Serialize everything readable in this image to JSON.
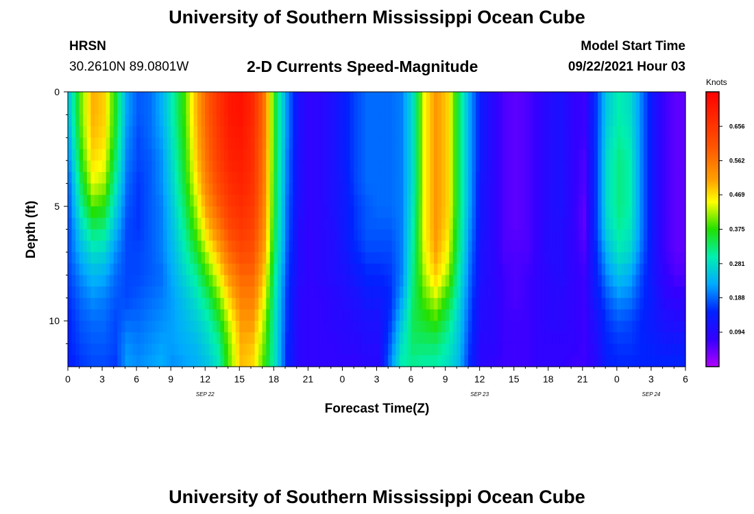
{
  "header": {
    "top_title": "University of Southern Mississippi Ocean Cube",
    "station": "HRSN",
    "coords": "30.2610N  89.0801W",
    "subtitle": "2-D Currents Speed-Magnitude",
    "model_start_label": "Model Start Time",
    "model_start_value": "09/22/2021 Hour 03",
    "bottom_title": "University of Southern Mississippi Ocean Cube"
  },
  "chart_data": {
    "type": "heatmap",
    "title": "2-D Currents Speed-Magnitude",
    "xlabel": "Forecast Time(Z)",
    "ylabel": "Depth (ft)",
    "units": "Knots",
    "x_range_hours": [
      0,
      54
    ],
    "x_tick_labels": [
      "0",
      "3",
      "6",
      "9",
      "12",
      "15",
      "18",
      "21",
      "0",
      "3",
      "6",
      "9",
      "12",
      "15",
      "18",
      "21",
      "0",
      "3",
      "6"
    ],
    "date_labels": [
      {
        "label": "SEP 22",
        "hour": 12
      },
      {
        "label": "SEP 23",
        "hour": 36
      },
      {
        "label": "SEP 24",
        "hour": 51
      }
    ],
    "y_range_ft": [
      0,
      12
    ],
    "y_tick_labels": [
      "0",
      "5",
      "10"
    ],
    "y_tick_values": [
      0,
      5,
      10
    ],
    "colorbar": {
      "min": 0.0,
      "max": 0.75,
      "tick_labels": [
        "0.656",
        "0.562",
        "0.469",
        "0.375",
        "0.281",
        "0.188",
        "0.094"
      ],
      "tick_values": [
        0.656,
        0.562,
        0.469,
        0.375,
        0.281,
        0.188,
        0.094
      ]
    },
    "depth_levels_ft": [
      0,
      1,
      2,
      3,
      4,
      5,
      6,
      7,
      8,
      9,
      10,
      11,
      12
    ],
    "profile_columns": [
      {
        "hour": 0,
        "speed_knots": [
          0.26,
          0.26,
          0.24,
          0.22,
          0.2,
          0.19,
          0.18,
          0.18,
          0.17,
          0.16,
          0.15,
          0.15,
          0.14
        ]
      },
      {
        "hour": 1,
        "speed_knots": [
          0.4,
          0.4,
          0.39,
          0.37,
          0.34,
          0.31,
          0.27,
          0.24,
          0.21,
          0.19,
          0.18,
          0.17,
          0.16
        ]
      },
      {
        "hour": 2,
        "speed_knots": [
          0.5,
          0.5,
          0.49,
          0.47,
          0.44,
          0.39,
          0.33,
          0.28,
          0.24,
          0.21,
          0.19,
          0.18,
          0.17
        ]
      },
      {
        "hour": 3,
        "speed_knots": [
          0.48,
          0.48,
          0.47,
          0.45,
          0.42,
          0.37,
          0.32,
          0.27,
          0.23,
          0.2,
          0.19,
          0.18,
          0.17
        ]
      },
      {
        "hour": 4,
        "speed_knots": [
          0.36,
          0.36,
          0.35,
          0.33,
          0.3,
          0.27,
          0.24,
          0.21,
          0.19,
          0.18,
          0.17,
          0.17,
          0.16
        ]
      },
      {
        "hour": 5,
        "speed_knots": [
          0.22,
          0.22,
          0.21,
          0.2,
          0.19,
          0.18,
          0.17,
          0.17,
          0.17,
          0.17,
          0.19,
          0.21,
          0.22
        ]
      },
      {
        "hour": 6,
        "speed_knots": [
          0.18,
          0.18,
          0.17,
          0.17,
          0.16,
          0.16,
          0.16,
          0.17,
          0.17,
          0.18,
          0.19,
          0.2,
          0.21
        ]
      },
      {
        "hour": 7,
        "speed_knots": [
          0.19,
          0.19,
          0.19,
          0.18,
          0.18,
          0.18,
          0.18,
          0.18,
          0.18,
          0.19,
          0.2,
          0.21,
          0.22
        ]
      },
      {
        "hour": 8,
        "speed_knots": [
          0.23,
          0.23,
          0.22,
          0.21,
          0.21,
          0.2,
          0.2,
          0.2,
          0.19,
          0.2,
          0.21,
          0.22,
          0.23
        ]
      },
      {
        "hour": 9,
        "speed_knots": [
          0.3,
          0.3,
          0.29,
          0.28,
          0.27,
          0.26,
          0.25,
          0.24,
          0.23,
          0.22,
          0.22,
          0.22,
          0.21
        ]
      },
      {
        "hour": 10,
        "speed_knots": [
          0.38,
          0.38,
          0.37,
          0.36,
          0.35,
          0.33,
          0.31,
          0.29,
          0.27,
          0.25,
          0.24,
          0.23,
          0.22
        ]
      },
      {
        "hour": 11,
        "speed_knots": [
          0.49,
          0.49,
          0.48,
          0.47,
          0.45,
          0.42,
          0.39,
          0.35,
          0.31,
          0.28,
          0.26,
          0.24,
          0.23
        ]
      },
      {
        "hour": 12,
        "speed_knots": [
          0.59,
          0.59,
          0.58,
          0.57,
          0.55,
          0.52,
          0.48,
          0.43,
          0.38,
          0.33,
          0.29,
          0.27,
          0.25
        ]
      },
      {
        "hour": 13,
        "speed_knots": [
          0.66,
          0.66,
          0.65,
          0.64,
          0.62,
          0.59,
          0.55,
          0.5,
          0.45,
          0.4,
          0.35,
          0.31,
          0.29
        ]
      },
      {
        "hour": 14,
        "speed_knots": [
          0.71,
          0.71,
          0.7,
          0.69,
          0.67,
          0.65,
          0.62,
          0.58,
          0.53,
          0.48,
          0.44,
          0.41,
          0.4
        ]
      },
      {
        "hour": 15,
        "speed_knots": [
          0.72,
          0.72,
          0.71,
          0.7,
          0.69,
          0.67,
          0.65,
          0.62,
          0.58,
          0.55,
          0.52,
          0.5,
          0.49
        ]
      },
      {
        "hour": 16,
        "speed_knots": [
          0.68,
          0.68,
          0.67,
          0.67,
          0.66,
          0.65,
          0.63,
          0.61,
          0.58,
          0.55,
          0.52,
          0.49,
          0.47
        ]
      },
      {
        "hour": 17,
        "speed_knots": [
          0.56,
          0.56,
          0.56,
          0.55,
          0.55,
          0.54,
          0.53,
          0.51,
          0.48,
          0.45,
          0.42,
          0.4,
          0.38
        ]
      },
      {
        "hour": 18,
        "speed_knots": [
          0.35,
          0.35,
          0.35,
          0.35,
          0.34,
          0.34,
          0.33,
          0.32,
          0.3,
          0.29,
          0.28,
          0.28,
          0.28
        ]
      },
      {
        "hour": 19,
        "speed_knots": [
          0.21,
          0.21,
          0.21,
          0.2,
          0.2,
          0.19,
          0.19,
          0.18,
          0.17,
          0.16,
          0.16,
          0.15,
          0.15
        ]
      },
      {
        "hour": 20,
        "speed_knots": [
          0.11,
          0.11,
          0.11,
          0.11,
          0.11,
          0.11,
          0.1,
          0.1,
          0.1,
          0.09,
          0.09,
          0.09,
          0.09
        ]
      },
      {
        "hour": 21,
        "speed_knots": [
          0.08,
          0.08,
          0.08,
          0.08,
          0.08,
          0.08,
          0.08,
          0.08,
          0.08,
          0.08,
          0.08,
          0.08,
          0.08
        ]
      },
      {
        "hour": 22,
        "speed_knots": [
          0.09,
          0.09,
          0.09,
          0.09,
          0.09,
          0.09,
          0.09,
          0.09,
          0.09,
          0.08,
          0.08,
          0.08,
          0.08
        ]
      },
      {
        "hour": 23,
        "speed_knots": [
          0.11,
          0.11,
          0.11,
          0.11,
          0.11,
          0.11,
          0.1,
          0.1,
          0.1,
          0.09,
          0.09,
          0.08,
          0.08
        ]
      },
      {
        "hour": 24,
        "speed_knots": [
          0.14,
          0.14,
          0.14,
          0.14,
          0.13,
          0.13,
          0.13,
          0.12,
          0.11,
          0.1,
          0.09,
          0.09,
          0.08
        ]
      },
      {
        "hour": 25,
        "speed_knots": [
          0.17,
          0.17,
          0.17,
          0.17,
          0.17,
          0.16,
          0.16,
          0.15,
          0.13,
          0.11,
          0.1,
          0.09,
          0.08
        ]
      },
      {
        "hour": 26,
        "speed_knots": [
          0.19,
          0.19,
          0.19,
          0.19,
          0.19,
          0.18,
          0.18,
          0.17,
          0.15,
          0.13,
          0.11,
          0.1,
          0.09
        ]
      },
      {
        "hour": 27,
        "speed_knots": [
          0.19,
          0.19,
          0.19,
          0.19,
          0.19,
          0.19,
          0.18,
          0.17,
          0.15,
          0.13,
          0.11,
          0.1,
          0.09
        ]
      },
      {
        "hour": 28,
        "speed_knots": [
          0.19,
          0.19,
          0.19,
          0.19,
          0.19,
          0.19,
          0.18,
          0.17,
          0.16,
          0.15,
          0.16,
          0.18,
          0.2
        ]
      },
      {
        "hour": 29,
        "speed_knots": [
          0.2,
          0.2,
          0.2,
          0.2,
          0.2,
          0.2,
          0.2,
          0.2,
          0.2,
          0.22,
          0.25,
          0.28,
          0.3
        ]
      },
      {
        "hour": 30,
        "speed_knots": [
          0.28,
          0.28,
          0.28,
          0.28,
          0.28,
          0.29,
          0.3,
          0.31,
          0.32,
          0.33,
          0.34,
          0.33,
          0.31
        ]
      },
      {
        "hour": 31,
        "speed_knots": [
          0.45,
          0.45,
          0.45,
          0.45,
          0.45,
          0.45,
          0.45,
          0.44,
          0.42,
          0.39,
          0.36,
          0.33,
          0.3
        ]
      },
      {
        "hour": 32,
        "speed_knots": [
          0.52,
          0.52,
          0.52,
          0.52,
          0.52,
          0.52,
          0.52,
          0.51,
          0.48,
          0.43,
          0.38,
          0.33,
          0.3
        ]
      },
      {
        "hour": 33,
        "speed_knots": [
          0.48,
          0.48,
          0.48,
          0.48,
          0.48,
          0.48,
          0.47,
          0.45,
          0.42,
          0.37,
          0.33,
          0.3,
          0.28
        ]
      },
      {
        "hour": 34,
        "speed_knots": [
          0.34,
          0.34,
          0.34,
          0.34,
          0.34,
          0.34,
          0.33,
          0.32,
          0.3,
          0.28,
          0.26,
          0.25,
          0.24
        ]
      },
      {
        "hour": 35,
        "speed_knots": [
          0.22,
          0.22,
          0.22,
          0.22,
          0.22,
          0.22,
          0.21,
          0.2,
          0.19,
          0.18,
          0.17,
          0.16,
          0.15
        ]
      },
      {
        "hour": 36,
        "speed_knots": [
          0.13,
          0.13,
          0.13,
          0.13,
          0.12,
          0.12,
          0.12,
          0.11,
          0.11,
          0.1,
          0.1,
          0.09,
          0.09
        ]
      },
      {
        "hour": 37,
        "speed_knots": [
          0.09,
          0.09,
          0.09,
          0.09,
          0.09,
          0.09,
          0.09,
          0.09,
          0.09,
          0.09,
          0.09,
          0.09,
          0.08
        ]
      },
      {
        "hour": 38,
        "speed_knots": [
          0.06,
          0.06,
          0.06,
          0.06,
          0.06,
          0.06,
          0.06,
          0.06,
          0.07,
          0.07,
          0.07,
          0.07,
          0.07
        ]
      },
      {
        "hour": 39,
        "speed_knots": [
          0.05,
          0.05,
          0.05,
          0.05,
          0.05,
          0.05,
          0.05,
          0.06,
          0.06,
          0.06,
          0.07,
          0.07,
          0.07
        ]
      },
      {
        "hour": 40,
        "speed_knots": [
          0.06,
          0.06,
          0.06,
          0.06,
          0.06,
          0.06,
          0.06,
          0.06,
          0.07,
          0.07,
          0.07,
          0.07,
          0.07
        ]
      },
      {
        "hour": 41,
        "speed_knots": [
          0.08,
          0.08,
          0.08,
          0.08,
          0.08,
          0.08,
          0.08,
          0.08,
          0.08,
          0.08,
          0.08,
          0.08,
          0.08
        ]
      },
      {
        "hour": 42,
        "speed_knots": [
          0.1,
          0.1,
          0.1,
          0.1,
          0.1,
          0.1,
          0.1,
          0.1,
          0.09,
          0.09,
          0.09,
          0.08,
          0.08
        ]
      },
      {
        "hour": 43,
        "speed_knots": [
          0.11,
          0.11,
          0.11,
          0.11,
          0.11,
          0.11,
          0.1,
          0.1,
          0.1,
          0.09,
          0.09,
          0.08,
          0.08
        ]
      },
      {
        "hour": 44,
        "speed_knots": [
          0.08,
          0.08,
          0.08,
          0.08,
          0.08,
          0.08,
          0.08,
          0.08,
          0.08,
          0.08,
          0.08,
          0.08,
          0.07
        ]
      },
      {
        "hour": 45,
        "speed_knots": [
          0.07,
          0.07,
          0.07,
          0.06,
          0.06,
          0.05,
          0.05,
          0.06,
          0.07,
          0.07,
          0.07,
          0.07,
          0.07
        ]
      },
      {
        "hour": 46,
        "speed_knots": [
          0.16,
          0.16,
          0.16,
          0.16,
          0.16,
          0.16,
          0.16,
          0.15,
          0.14,
          0.13,
          0.11,
          0.1,
          0.09
        ]
      },
      {
        "hour": 47,
        "speed_knots": [
          0.26,
          0.26,
          0.27,
          0.28,
          0.28,
          0.28,
          0.27,
          0.24,
          0.21,
          0.18,
          0.16,
          0.15,
          0.14
        ]
      },
      {
        "hour": 48,
        "speed_knots": [
          0.3,
          0.3,
          0.31,
          0.32,
          0.32,
          0.32,
          0.31,
          0.29,
          0.25,
          0.21,
          0.18,
          0.16,
          0.15
        ]
      },
      {
        "hour": 49,
        "speed_knots": [
          0.28,
          0.28,
          0.29,
          0.3,
          0.3,
          0.3,
          0.29,
          0.27,
          0.23,
          0.2,
          0.17,
          0.16,
          0.15
        ]
      },
      {
        "hour": 50,
        "speed_knots": [
          0.2,
          0.2,
          0.2,
          0.2,
          0.2,
          0.2,
          0.2,
          0.19,
          0.17,
          0.16,
          0.15,
          0.15,
          0.15
        ]
      },
      {
        "hour": 51,
        "speed_knots": [
          0.12,
          0.12,
          0.12,
          0.12,
          0.12,
          0.12,
          0.12,
          0.12,
          0.12,
          0.13,
          0.13,
          0.14,
          0.15
        ]
      },
      {
        "hour": 52,
        "speed_knots": [
          0.07,
          0.07,
          0.07,
          0.07,
          0.07,
          0.07,
          0.07,
          0.07,
          0.08,
          0.09,
          0.11,
          0.13,
          0.15
        ]
      },
      {
        "hour": 53,
        "speed_knots": [
          0.05,
          0.05,
          0.05,
          0.05,
          0.05,
          0.05,
          0.05,
          0.05,
          0.06,
          0.08,
          0.1,
          0.13,
          0.15
        ]
      }
    ]
  }
}
